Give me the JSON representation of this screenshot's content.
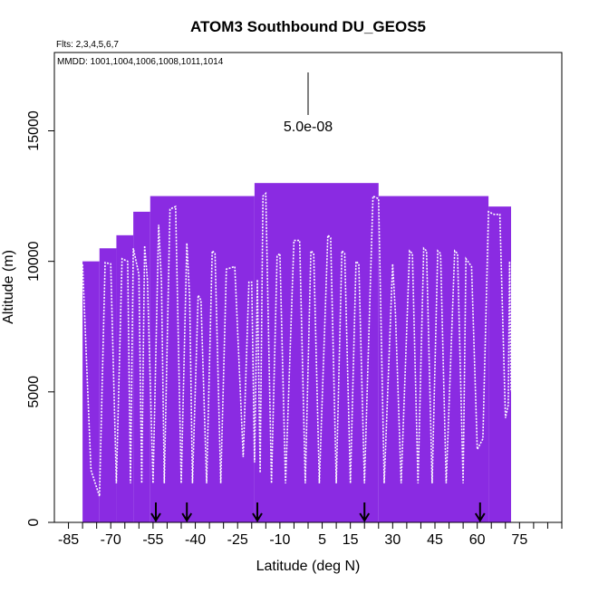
{
  "chart_data": {
    "type": "heatmap",
    "title": "ATOM3 Southbound DU_GEOS5",
    "flights_note": "Flts: 2,3,4,5,6,7",
    "dates_note": "MMDD: 1001,1004,1006,1008,1011,1014",
    "xlabel": "Latitude (deg N)",
    "ylabel": "Altitude (m)",
    "xlim": [
      -90,
      90
    ],
    "ylim": [
      0,
      18000
    ],
    "x_ticks": [
      -85,
      -70,
      -55,
      -40,
      -25,
      -10,
      5,
      15,
      30,
      45,
      60,
      75
    ],
    "x_minor_ticks": [
      -80,
      -75,
      -65,
      -60,
      -50,
      -45,
      -35,
      -30,
      -20,
      -15,
      -5,
      0,
      10,
      20,
      25,
      35,
      40,
      50,
      55,
      65,
      70,
      80,
      85,
      90
    ],
    "y_ticks": [
      0,
      5000,
      10000,
      15000
    ],
    "scale_label": "5.0e-08",
    "colors": {
      "field": "#8a2be2",
      "field_dark": "#7a1fe0",
      "track": "#ffffff",
      "axis": "#000000"
    },
    "field_columns": [
      {
        "x0": -80,
        "x1": -74,
        "top": 10000
      },
      {
        "x0": -74,
        "x1": -68,
        "top": 10500
      },
      {
        "x0": -68,
        "x1": -62,
        "top": 11000
      },
      {
        "x0": -62,
        "x1": -56,
        "top": 11900
      },
      {
        "x0": -56,
        "x1": -19,
        "top": 12500
      },
      {
        "x0": -19,
        "x1": 25,
        "top": 13000
      },
      {
        "x0": 25,
        "x1": 64,
        "top": 12500
      },
      {
        "x0": 64,
        "x1": 72,
        "top": 12100
      }
    ],
    "flight_track": [
      [
        -81,
        5800
      ],
      [
        -80,
        9900
      ],
      [
        -77,
        2000
      ],
      [
        -74,
        1000
      ],
      [
        -72,
        9950
      ],
      [
        -70,
        9900
      ],
      [
        -68,
        1500
      ],
      [
        -66,
        10100
      ],
      [
        -64,
        10000
      ],
      [
        -63,
        1500
      ],
      [
        -62,
        10500
      ],
      [
        -60,
        9500
      ],
      [
        -59,
        1500
      ],
      [
        -58,
        10600
      ],
      [
        -57,
        9300
      ],
      [
        -55,
        1500
      ],
      [
        -53,
        11400
      ],
      [
        -52,
        9200
      ],
      [
        -51,
        1500
      ],
      [
        -49,
        12000
      ],
      [
        -47,
        12100
      ],
      [
        -45,
        1500
      ],
      [
        -43,
        10700
      ],
      [
        -42,
        8600
      ],
      [
        -41,
        1500
      ],
      [
        -39,
        8700
      ],
      [
        -38,
        8500
      ],
      [
        -36,
        1500
      ],
      [
        -34,
        10400
      ],
      [
        -33,
        10300
      ],
      [
        -31,
        1500
      ],
      [
        -29,
        9700
      ],
      [
        -26,
        9800
      ],
      [
        -23,
        2500
      ],
      [
        -21,
        9200
      ],
      [
        -20,
        9200
      ],
      [
        -19,
        2300
      ],
      [
        -18,
        9300
      ],
      [
        -17,
        1900
      ],
      [
        -16,
        12500
      ],
      [
        -15,
        12600
      ],
      [
        -13,
        1500
      ],
      [
        -11,
        10200
      ],
      [
        -10,
        10300
      ],
      [
        -8,
        1500
      ],
      [
        -5,
        10800
      ],
      [
        -3,
        10800
      ],
      [
        -1,
        1500
      ],
      [
        1,
        10400
      ],
      [
        2,
        10300
      ],
      [
        4,
        1500
      ],
      [
        7,
        11000
      ],
      [
        8,
        10900
      ],
      [
        10,
        1500
      ],
      [
        12,
        10400
      ],
      [
        13,
        10300
      ],
      [
        15,
        1500
      ],
      [
        17,
        10000
      ],
      [
        18,
        9900
      ],
      [
        20,
        1500
      ],
      [
        23,
        12500
      ],
      [
        25,
        12400
      ],
      [
        27,
        1500
      ],
      [
        30,
        9900
      ],
      [
        31,
        8000
      ],
      [
        33,
        1500
      ],
      [
        36,
        10400
      ],
      [
        37,
        10300
      ],
      [
        39,
        1500
      ],
      [
        41,
        10500
      ],
      [
        42,
        10400
      ],
      [
        44,
        1500
      ],
      [
        46,
        10400
      ],
      [
        47,
        10300
      ],
      [
        49,
        1500
      ],
      [
        52,
        10400
      ],
      [
        53,
        10300
      ],
      [
        55,
        1500
      ],
      [
        56,
        10100
      ],
      [
        58,
        9800
      ],
      [
        60,
        2800
      ],
      [
        62,
        3200
      ],
      [
        64,
        11900
      ],
      [
        66,
        11800
      ],
      [
        68,
        11800
      ],
      [
        70,
        4000
      ],
      [
        71,
        4500
      ],
      [
        71.5,
        10000
      ],
      [
        72,
        5000
      ]
    ],
    "arrows_x": [
      -54,
      -43,
      -18,
      20,
      61
    ]
  }
}
